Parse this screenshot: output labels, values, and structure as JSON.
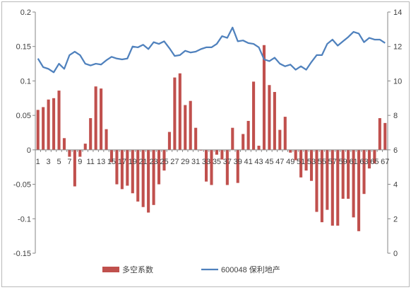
{
  "chart_data": {
    "type": "bar+line",
    "categories": [
      "1",
      "2",
      "3",
      "4",
      "5",
      "6",
      "7",
      "8",
      "9",
      "10",
      "11",
      "12",
      "13",
      "14",
      "15",
      "16",
      "17",
      "18",
      "19",
      "20",
      "21",
      "22",
      "23",
      "24",
      "25",
      "26",
      "27",
      "28",
      "29",
      "30",
      "31",
      "32",
      "33",
      "34",
      "35",
      "36",
      "37",
      "38",
      "39",
      "40",
      "41",
      "42",
      "43",
      "44",
      "45",
      "46",
      "47",
      "48",
      "49",
      "50",
      "51",
      "52",
      "53",
      "54",
      "55",
      "56",
      "57",
      "58",
      "59",
      "60",
      "61",
      "62",
      "63",
      "64",
      "65",
      "66",
      "67"
    ],
    "x_tick_labels": [
      "1",
      "3",
      "5",
      "7",
      "9",
      "11",
      "13",
      "15",
      "17",
      "19",
      "21",
      "23",
      "25",
      "27",
      "29",
      "31",
      "33",
      "35",
      "37",
      "39",
      "41",
      "43",
      "45",
      "47",
      "49",
      "51",
      "53",
      "55",
      "57",
      "59",
      "61",
      "63",
      "65",
      "67"
    ],
    "y_left": {
      "min": -0.15,
      "max": 0.2,
      "ticks": [
        -0.15,
        -0.1,
        -0.05,
        0,
        0.05,
        0.1,
        0.15,
        0.2
      ]
    },
    "y_right": {
      "min": 0,
      "max": 14,
      "ticks": [
        0,
        2,
        4,
        6,
        8,
        10,
        12,
        14
      ]
    },
    "series": [
      {
        "name": "多空系数",
        "type": "bar",
        "axis": "left",
        "color": "#C0504D",
        "values": [
          0.058,
          0.062,
          0.073,
          0.075,
          0.086,
          0.017,
          -0.01,
          -0.053,
          -0.01,
          0.009,
          0.046,
          0.092,
          0.089,
          0.03,
          -0.018,
          -0.05,
          -0.057,
          -0.052,
          -0.063,
          -0.075,
          -0.083,
          -0.091,
          -0.08,
          -0.05,
          -0.03,
          0.026,
          0.105,
          0.111,
          0.065,
          0.071,
          0.032,
          -0.001,
          -0.046,
          -0.051,
          -0.007,
          -0.014,
          -0.051,
          0.032,
          -0.048,
          0.023,
          0.042,
          0.099,
          0.006,
          0.152,
          0.094,
          0.084,
          0.029,
          0.048,
          -0.004,
          -0.015,
          -0.04,
          -0.03,
          -0.045,
          -0.09,
          -0.105,
          -0.087,
          -0.11,
          -0.11,
          -0.071,
          -0.071,
          -0.098,
          -0.118,
          -0.064,
          -0.027,
          -0.02,
          0.046,
          0.039
        ]
      },
      {
        "name": "600048 保利地产",
        "type": "line",
        "axis": "right",
        "color": "#4F81BD",
        "values": [
          11.3,
          10.8,
          10.7,
          10.5,
          11.0,
          10.7,
          11.5,
          11.7,
          11.5,
          11.0,
          10.9,
          11.0,
          10.95,
          11.2,
          11.4,
          11.3,
          11.25,
          11.3,
          12.0,
          11.95,
          12.1,
          11.85,
          12.25,
          12.15,
          12.3,
          11.9,
          11.45,
          11.5,
          11.75,
          11.65,
          11.7,
          11.85,
          11.95,
          11.95,
          12.15,
          12.6,
          12.5,
          13.1,
          12.3,
          12.35,
          12.2,
          12.15,
          11.95,
          11.25,
          11.15,
          11.35,
          11.0,
          10.85,
          10.95,
          10.65,
          10.85,
          10.65,
          11.1,
          11.5,
          11.5,
          12.15,
          12.4,
          12.05,
          12.3,
          12.55,
          12.85,
          12.75,
          12.25,
          12.5,
          12.4,
          12.4,
          12.2
        ]
      }
    ],
    "legend": {
      "placement": "bottom",
      "entries": [
        "多空系数",
        "600048 保利地产"
      ]
    }
  }
}
